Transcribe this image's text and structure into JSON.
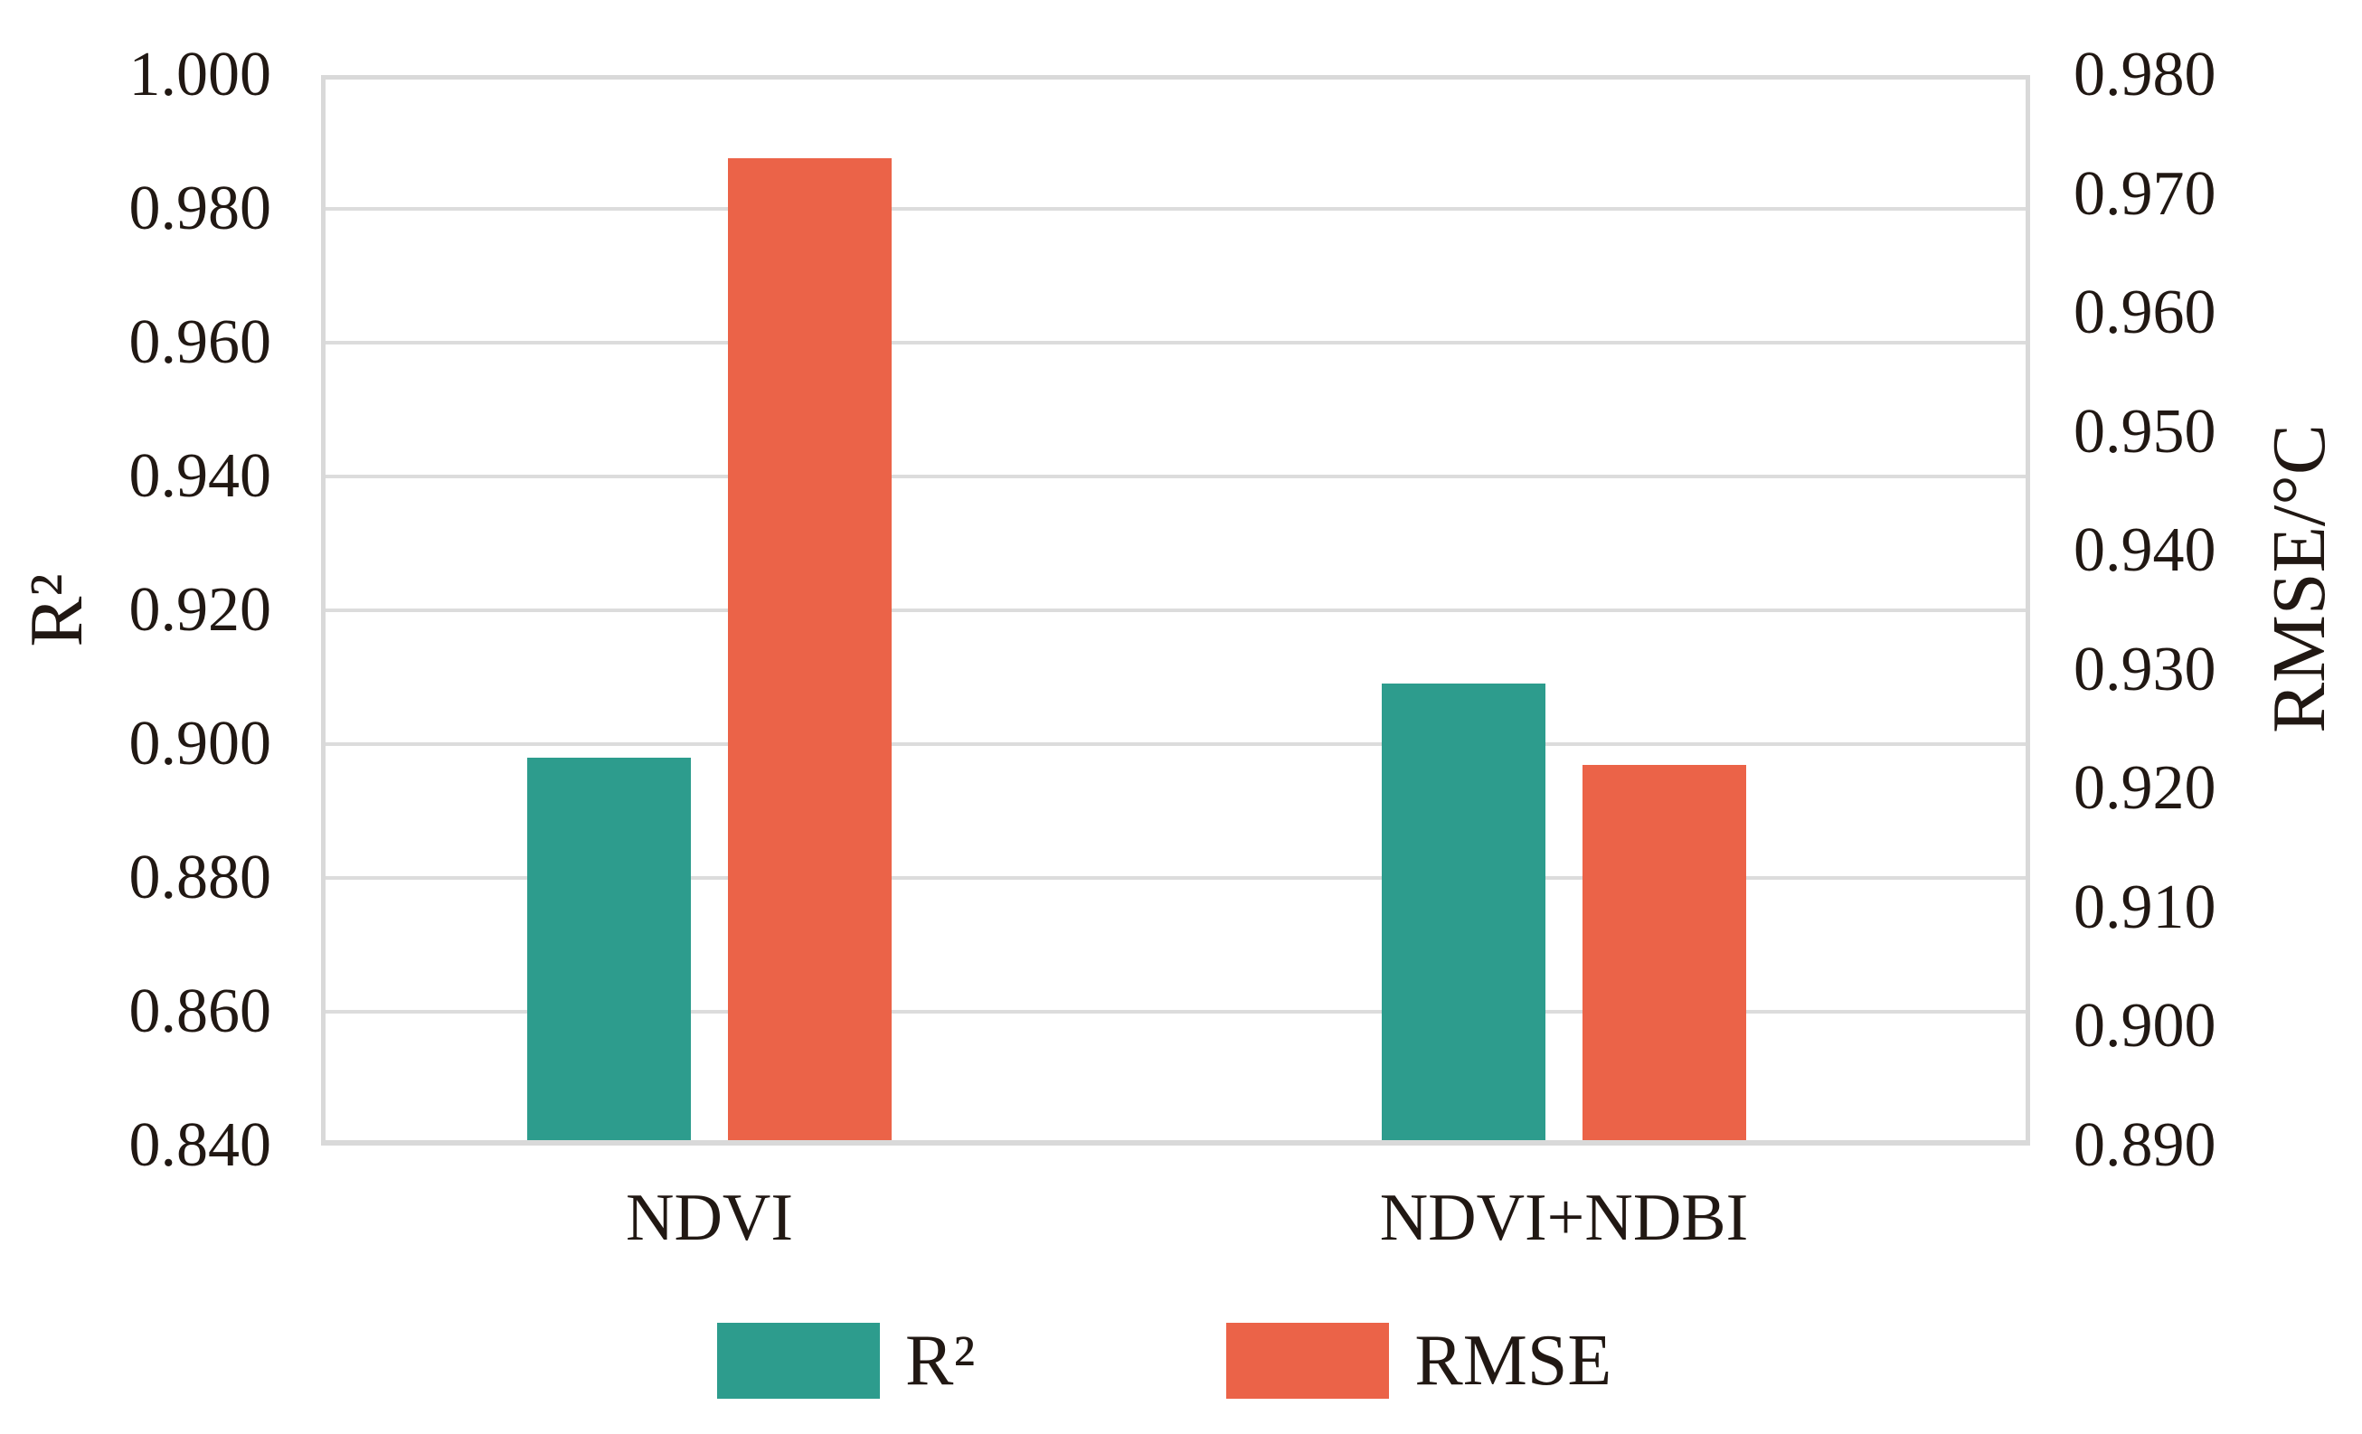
{
  "chart_data": {
    "type": "bar",
    "title": "",
    "categories": [
      "NDVI",
      "NDVI+NDBI"
    ],
    "series": [
      {
        "name": "R²",
        "axis": "left",
        "color": "#2D9C8D",
        "values": [
          0.898,
          0.909
        ]
      },
      {
        "name": "RMSE",
        "axis": "right",
        "color": "#EB6348",
        "values": [
          0.973,
          0.922
        ]
      }
    ],
    "left_axis": {
      "label": "R²",
      "min": 0.84,
      "max": 1.0,
      "tick_step": 0.02,
      "ticks": [
        "1.000",
        "0.980",
        "0.960",
        "0.940",
        "0.920",
        "0.900",
        "0.880",
        "0.860",
        "0.840"
      ]
    },
    "right_axis": {
      "label": "RMSE/°C",
      "min": 0.89,
      "max": 0.98,
      "tick_step": 0.01,
      "ticks": [
        "0.980",
        "0.970",
        "0.960",
        "0.950",
        "0.940",
        "0.930",
        "0.920",
        "0.910",
        "0.900",
        "0.890"
      ]
    },
    "grid": true,
    "legend_position": "bottom",
    "legend": [
      "R²",
      "RMSE"
    ]
  },
  "style": {
    "background": "#ffffff",
    "grid_color": "#dcdcdc",
    "frame_color": "#d9d9d9",
    "text_color": "#211813"
  }
}
